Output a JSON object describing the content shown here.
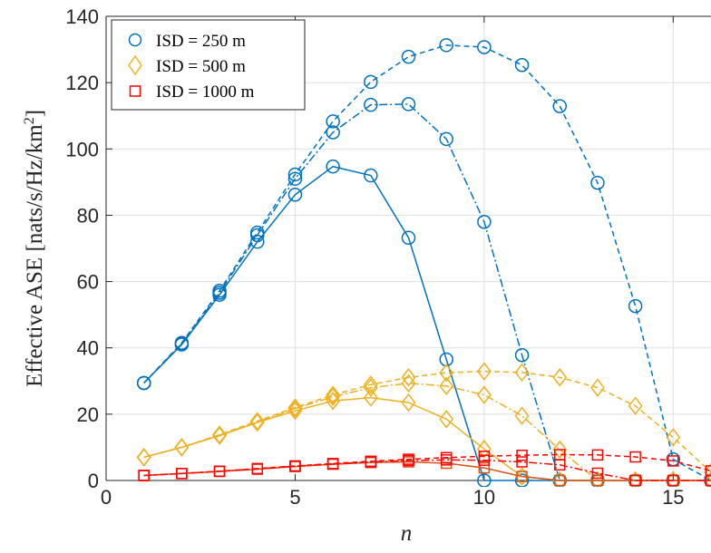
{
  "chart_data": {
    "type": "line",
    "title": "",
    "xlabel": "n",
    "ylabel": "Effective ASE [nats/s/Hz/km²]",
    "ylabel_main": "Effective ASE [nats/s/Hz/km",
    "ylabel_sup": "2",
    "ylabel_end": "]",
    "xlim": [
      0,
      16
    ],
    "ylim": [
      0,
      140
    ],
    "xticks": [
      0,
      5,
      10,
      15
    ],
    "yticks": [
      0,
      20,
      40,
      60,
      80,
      100,
      120,
      140
    ],
    "grid": true,
    "legend_position": "top-left",
    "legend": [
      {
        "label": "ISD = 250 m",
        "marker": "circle",
        "color": "#0072BD"
      },
      {
        "label": "ISD = 500 m",
        "marker": "diamond",
        "color": "#EDB120"
      },
      {
        "label": "ISD = 1000 m",
        "marker": "square",
        "color": "#FF0000"
      }
    ],
    "series": [
      {
        "group": "ISD = 250 m",
        "line": "solid",
        "marker": "circle",
        "color": "#0072BD",
        "x": [
          1,
          2,
          3,
          4,
          5,
          6,
          7,
          8,
          9,
          10,
          11,
          12,
          13,
          14,
          15,
          16
        ],
        "y": [
          29.4,
          41,
          56,
          72,
          86.2,
          94.7,
          92,
          73.2,
          36.5,
          0,
          0,
          0,
          0,
          0,
          0,
          0
        ]
      },
      {
        "group": "ISD = 250 m",
        "line": "dashdot",
        "marker": "circle",
        "color": "#0072BD",
        "x": [
          1,
          2,
          3,
          4,
          5,
          6,
          7,
          8,
          9,
          10,
          11,
          12,
          13,
          14,
          15,
          16
        ],
        "y": [
          29.4,
          41.2,
          56.6,
          74,
          91,
          105,
          113.3,
          113.5,
          103,
          78,
          37.8,
          0,
          0,
          0,
          0,
          0
        ]
      },
      {
        "group": "ISD = 250 m",
        "line": "dashed",
        "marker": "circle",
        "color": "#0072BD",
        "x": [
          1,
          2,
          3,
          4,
          5,
          6,
          7,
          8,
          9,
          10,
          11,
          12,
          13,
          14,
          15,
          16
        ],
        "y": [
          29.4,
          41.5,
          57.2,
          74.8,
          92.3,
          108.3,
          120.2,
          127.8,
          131.3,
          130.7,
          125.3,
          112.9,
          89.8,
          52.6,
          6.4,
          0
        ]
      },
      {
        "group": "ISD = 500 m",
        "line": "solid",
        "marker": "diamond",
        "color": "#EDB120",
        "x": [
          1,
          2,
          3,
          4,
          5,
          6,
          7,
          8,
          9,
          10,
          11,
          12,
          13,
          14,
          15,
          16
        ],
        "y": [
          7,
          10,
          13.5,
          17.5,
          21,
          24,
          25,
          23.5,
          18.5,
          9.5,
          1.2,
          0,
          0,
          0,
          0,
          0
        ]
      },
      {
        "group": "ISD = 500 m",
        "line": "dashdot",
        "marker": "diamond",
        "color": "#EDB120",
        "x": [
          1,
          2,
          3,
          4,
          5,
          6,
          7,
          8,
          9,
          10,
          11,
          12,
          13,
          14,
          15,
          16
        ],
        "y": [
          7,
          10,
          13.7,
          17.7,
          21.7,
          25.2,
          28,
          29.3,
          28.5,
          25.8,
          19.5,
          9.3,
          0,
          0,
          0,
          0
        ]
      },
      {
        "group": "ISD = 500 m",
        "line": "dashed",
        "marker": "diamond",
        "color": "#EDB120",
        "x": [
          1,
          2,
          3,
          4,
          5,
          6,
          7,
          8,
          9,
          10,
          11,
          12,
          13,
          14,
          15,
          16
        ],
        "y": [
          7,
          10,
          13.8,
          17.9,
          22,
          25.8,
          28.9,
          31.1,
          32.5,
          32.9,
          32.6,
          31.1,
          28,
          22.5,
          13,
          2.5
        ]
      },
      {
        "group": "ISD = 1000 m",
        "line": "solid",
        "marker": "square",
        "color": "#D95319",
        "x": [
          1,
          2,
          3,
          4,
          5,
          6,
          7,
          8,
          9,
          10,
          11,
          12,
          13,
          14,
          15,
          16
        ],
        "y": [
          1.5,
          2.1,
          2.7,
          3.4,
          4.2,
          4.9,
          5.4,
          5.6,
          5.2,
          3.8,
          1.2,
          0,
          0,
          0,
          0,
          0
        ]
      },
      {
        "group": "ISD = 1000 m",
        "line": "dashdot",
        "marker": "square",
        "color": "#FF0000",
        "x": [
          1,
          2,
          3,
          4,
          5,
          6,
          7,
          8,
          9,
          10,
          11,
          12,
          13,
          14,
          15,
          16
        ],
        "y": [
          1.5,
          2.1,
          2.8,
          3.5,
          4.3,
          5,
          5.6,
          6,
          6.2,
          6.1,
          5.6,
          4.7,
          2.2,
          0,
          0,
          0
        ]
      },
      {
        "group": "ISD = 1000 m",
        "line": "dashed",
        "marker": "square",
        "color": "#FF0000",
        "x": [
          1,
          2,
          3,
          4,
          5,
          6,
          7,
          8,
          9,
          10,
          11,
          12,
          13,
          14,
          15,
          16
        ],
        "y": [
          1.5,
          2.1,
          2.8,
          3.6,
          4.4,
          5.1,
          5.8,
          6.4,
          6.9,
          7.3,
          7.6,
          7.8,
          7.7,
          7.1,
          5.9,
          2.9
        ]
      }
    ]
  }
}
